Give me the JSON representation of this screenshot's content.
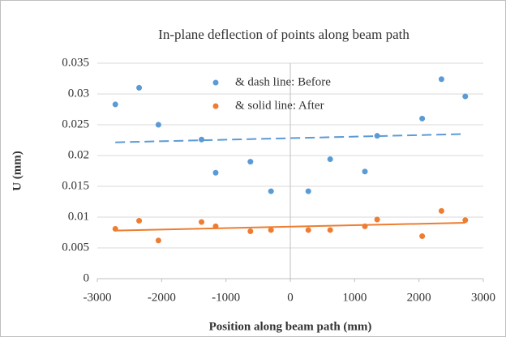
{
  "chart_data": {
    "type": "scatter",
    "title": "In-plane deflection of points along beam path",
    "x_label": "Position along beam path (mm)",
    "y_label": "U (mm)",
    "xlim": [
      -3000,
      3000
    ],
    "xticks": [
      -3000,
      -2000,
      -1000,
      0,
      1000,
      2000,
      3000
    ],
    "ylim": [
      0,
      0.035
    ],
    "yticks": [
      0,
      0.005,
      0.01,
      0.015,
      0.02,
      0.025,
      0.03,
      0.035
    ],
    "grid": true,
    "legend": "top",
    "series": [
      {
        "name": "& dash line: Before",
        "color": "#5b9bd5",
        "trendline": "dashed",
        "x": [
          -2720,
          -2350,
          -2050,
          -1380,
          -1160,
          -620,
          -300,
          280,
          620,
          1160,
          1350,
          2050,
          2350,
          2720
        ],
        "values": [
          0.0283,
          0.031,
          0.025,
          0.0226,
          0.0172,
          0.019,
          0.0142,
          0.0142,
          0.0194,
          0.0174,
          0.0232,
          0.026,
          0.0324,
          0.0296
        ]
      },
      {
        "name": "& solid line: After",
        "color": "#ed7d31",
        "trendline": "solid",
        "x": [
          -2720,
          -2350,
          -2050,
          -1380,
          -1160,
          -620,
          -300,
          280,
          620,
          1160,
          1350,
          2050,
          2350,
          2720
        ],
        "values": [
          0.0081,
          0.0094,
          0.0062,
          0.0092,
          0.0085,
          0.0077,
          0.0079,
          0.0079,
          0.0079,
          0.0085,
          0.0096,
          0.0069,
          0.011,
          0.0095
        ]
      }
    ]
  }
}
